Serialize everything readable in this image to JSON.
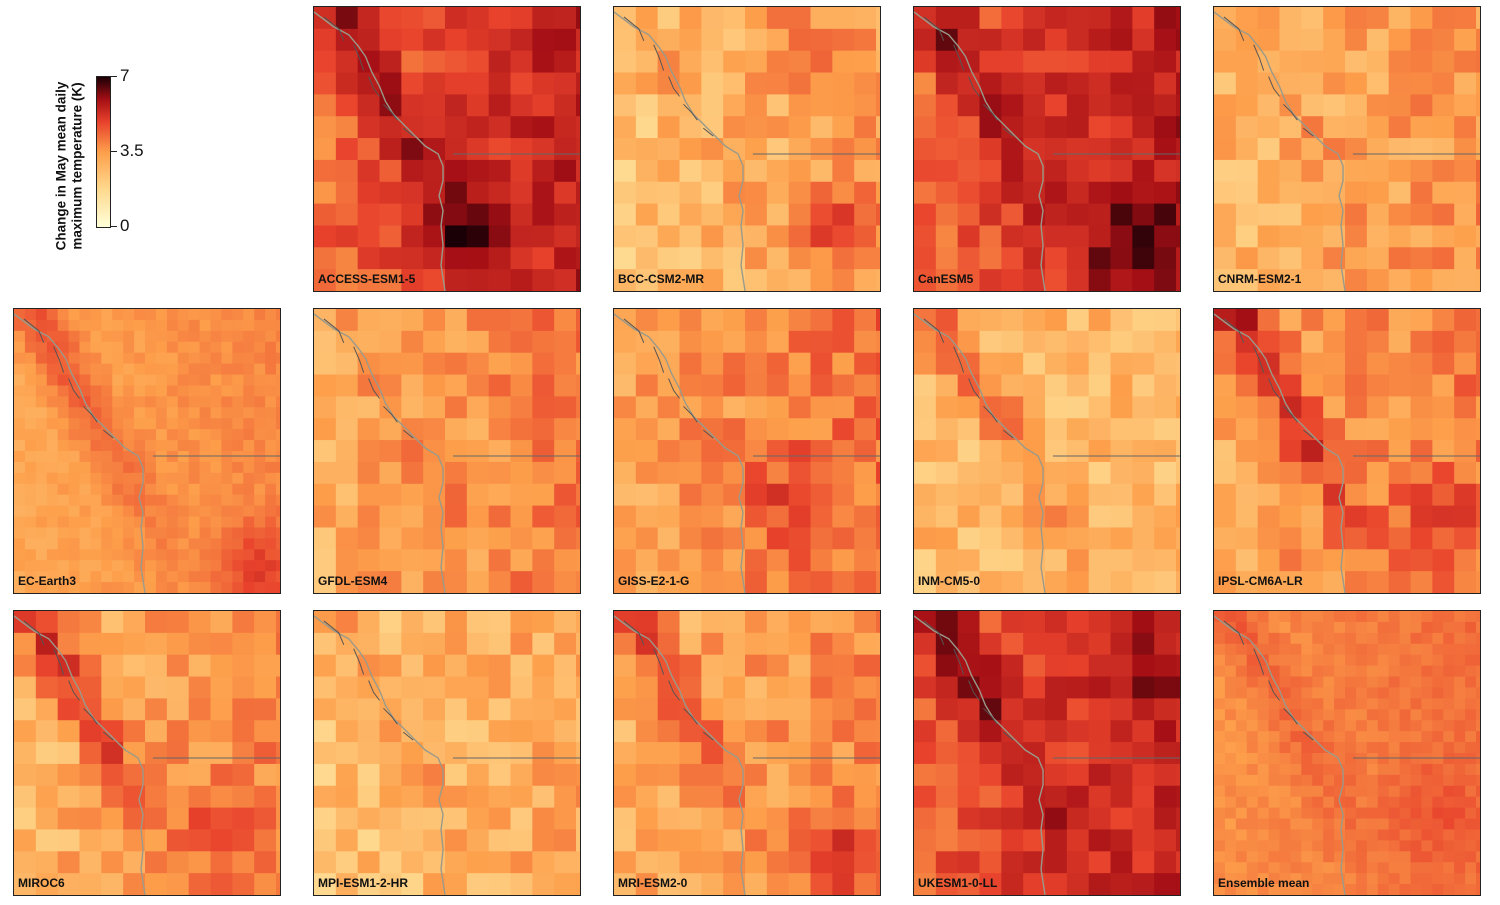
{
  "colorbar": {
    "title_line1": "Change in May mean daily",
    "title_line2": "maximum temperature (K)",
    "ticks": [
      {
        "label": "7",
        "value": 7
      },
      {
        "label": "3.5",
        "value": 3.5
      },
      {
        "label": "0",
        "value": 0
      }
    ],
    "colors": [
      "#ffffd9",
      "#fed98e",
      "#fd9f4b",
      "#e8422c",
      "#a50f15",
      "#1a0006"
    ]
  },
  "panels": [
    {
      "label": "ACCESS-ESM1-5",
      "base": 3.6,
      "east": 1.6,
      "coast": 2.6,
      "hot": [
        [
          0.55,
          0.75,
          2.2
        ]
      ]
    },
    {
      "label": "BCC-CSM2-MR",
      "base": 2.0,
      "east": 0.8,
      "coast": 0.6,
      "hot": [
        [
          0.8,
          0.75,
          1.6
        ],
        [
          0.65,
          0.1,
          0.8
        ]
      ]
    },
    {
      "label": "CanESM5",
      "base": 3.7,
      "east": 1.6,
      "coast": 2.2,
      "hot": [
        [
          0.8,
          0.8,
          2.0
        ]
      ]
    },
    {
      "label": "CNRM-ESM2-1",
      "base": 2.3,
      "east": 0.7,
      "coast": 0.6,
      "hot": []
    },
    {
      "label": "EC-Earth3",
      "base": 2.6,
      "east": 0.6,
      "coast": 1.5,
      "hot": [
        [
          0.9,
          0.9,
          1.3
        ]
      ]
    },
    {
      "label": "GFDL-ESM4",
      "base": 2.4,
      "east": 1.0,
      "coast": 0.4,
      "hot": []
    },
    {
      "label": "GISS-E2-1-G",
      "base": 2.6,
      "east": 1.0,
      "coast": 0.5,
      "hot": [
        [
          0.65,
          0.65,
          1.4
        ]
      ]
    },
    {
      "label": "INM-CM5-0",
      "base": 2.2,
      "east": 0.0,
      "coast": 2.2,
      "hot": []
    },
    {
      "label": "IPSL-CM6A-LR",
      "base": 2.6,
      "east": 0.8,
      "coast": 3.0,
      "hot": [
        [
          0.8,
          0.7,
          1.4
        ]
      ]
    },
    {
      "label": "MIROC6",
      "base": 2.3,
      "east": 0.9,
      "coast": 2.6,
      "hot": [
        [
          0.75,
          0.75,
          1.2
        ]
      ]
    },
    {
      "label": "MPI-ESM1-2-HR",
      "base": 2.0,
      "east": 0.6,
      "coast": 1.2,
      "hot": []
    },
    {
      "label": "MRI-ESM2-0",
      "base": 2.4,
      "east": 0.8,
      "coast": 2.0,
      "hot": [
        [
          0.8,
          0.8,
          1.5
        ]
      ]
    },
    {
      "label": "UKESM1-0-LL",
      "base": 3.9,
      "east": 1.2,
      "coast": 2.4,
      "hot": [
        [
          0.85,
          0.2,
          0.8
        ]
      ]
    },
    {
      "label": "Ensemble mean",
      "base": 3.0,
      "east": 0.6,
      "coast": 0.8,
      "hot": [
        [
          0.8,
          0.7,
          0.5
        ]
      ]
    }
  ]
}
